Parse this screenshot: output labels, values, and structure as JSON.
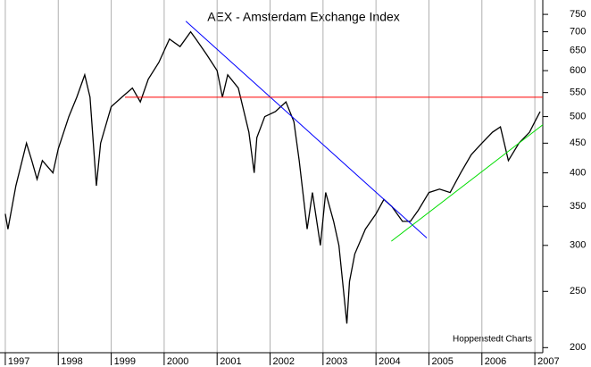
{
  "chart_data": {
    "type": "line",
    "title": "AEX - Amsterdam Exchange Index",
    "source": "Hoppenstedt Charts",
    "log_scale_y": true,
    "grid_x": true,
    "xlim": [
      1996.9,
      2007.15
    ],
    "xticks": [
      1997,
      1998,
      1999,
      2000,
      2001,
      2002,
      2003,
      2004,
      2005,
      2006,
      2007
    ],
    "ylim": [
      196,
      794
    ],
    "yticks": [
      200,
      250,
      300,
      350,
      400,
      450,
      500,
      550,
      600,
      650,
      700,
      750
    ],
    "series": [
      {
        "color": "#000000",
        "x": [
          1997.0,
          1997.05,
          1997.2,
          1997.4,
          1997.5,
          1997.6,
          1997.7,
          1997.9,
          1998.0,
          1998.2,
          1998.35,
          1998.5,
          1998.6,
          1998.72,
          1998.8,
          1999.0,
          1999.2,
          1999.4,
          1999.55,
          1999.7,
          1999.9,
          2000.1,
          2000.3,
          2000.5,
          2000.6,
          2000.8,
          2001.0,
          2001.1,
          2001.2,
          2001.4,
          2001.6,
          2001.7,
          2001.75,
          2001.9,
          2002.1,
          2002.3,
          2002.45,
          2002.55,
          2002.7,
          2002.8,
          2002.95,
          2003.05,
          2003.2,
          2003.3,
          2003.45,
          2003.5,
          2003.6,
          2003.8,
          2004.0,
          2004.15,
          2004.3,
          2004.5,
          2004.65,
          2004.8,
          2005.0,
          2005.2,
          2005.4,
          2005.6,
          2005.8,
          2006.0,
          2006.2,
          2006.35,
          2006.5,
          2006.7,
          2006.9,
          2007.0,
          2007.1
        ],
        "values": [
          340,
          320,
          380,
          450,
          420,
          390,
          420,
          400,
          440,
          500,
          540,
          590,
          540,
          380,
          450,
          520,
          540,
          560,
          530,
          580,
          620,
          680,
          660,
          700,
          680,
          640,
          600,
          540,
          590,
          560,
          470,
          400,
          460,
          500,
          510,
          530,
          490,
          420,
          320,
          370,
          300,
          370,
          330,
          300,
          220,
          260,
          290,
          320,
          340,
          360,
          350,
          330,
          330,
          345,
          370,
          375,
          370,
          400,
          430,
          450,
          470,
          480,
          420,
          450,
          470,
          490,
          510
        ]
      },
      {
        "color": "#0000ff",
        "x": [
          2000.41,
          2004.96
        ],
        "values": [
          730,
          309
        ]
      },
      {
        "color": "#ff0000",
        "x": [
          1999.26,
          2007.15
        ],
        "values": [
          540,
          540
        ]
      },
      {
        "color": "#00dd00",
        "x": [
          2004.29,
          2007.15
        ],
        "values": [
          305,
          484
        ]
      }
    ]
  }
}
